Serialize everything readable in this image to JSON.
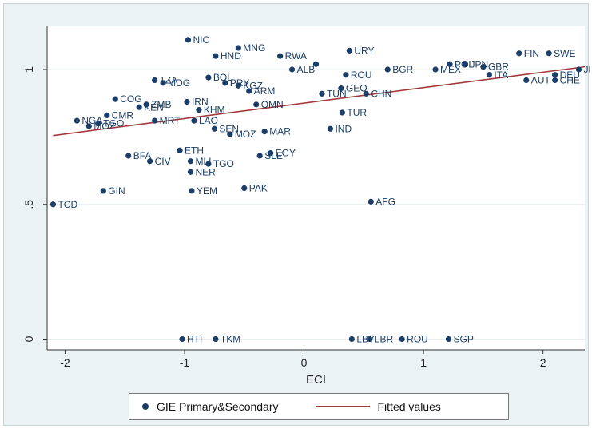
{
  "chart_data": {
    "type": "scatter",
    "xlabel": "ECI",
    "ylabel": "",
    "xlim": [
      -2.15,
      2.35
    ],
    "ylim": [
      -0.04,
      1.16
    ],
    "xticks": [
      {
        "v": -2,
        "label": "-2"
      },
      {
        "v": -1,
        "label": "-1"
      },
      {
        "v": 0,
        "label": "0"
      },
      {
        "v": 1,
        "label": "1"
      },
      {
        "v": 2,
        "label": "2"
      }
    ],
    "yticks": [
      {
        "v": 0,
        "label": "0"
      },
      {
        "v": 0.5,
        "label": ".5"
      },
      {
        "v": 1,
        "label": "1"
      }
    ],
    "grid": true,
    "legend_position": "bottom",
    "colors": {
      "points": "#1a3e68",
      "fit": "#a33a3a",
      "plot_bg": "#ffffff",
      "outer_bg": "#eaf2f3"
    },
    "series": [
      {
        "name": "GIE Primary&Secondary",
        "points": [
          {
            "x": -2.1,
            "y": 0.5,
            "label": "TCD"
          },
          {
            "x": -1.9,
            "y": 0.81,
            "label": "NGA"
          },
          {
            "x": -1.8,
            "y": 0.79,
            "label": "MOZ"
          },
          {
            "x": -1.72,
            "y": 0.8,
            "label": "TGO"
          },
          {
            "x": -1.65,
            "y": 0.83,
            "label": "CMR"
          },
          {
            "x": -1.58,
            "y": 0.89,
            "label": "COG"
          },
          {
            "x": -1.68,
            "y": 0.55,
            "label": "GIN"
          },
          {
            "x": -1.47,
            "y": 0.68,
            "label": "BFA"
          },
          {
            "x": -1.29,
            "y": 0.66,
            "label": "CIV"
          },
          {
            "x": -1.38,
            "y": 0.86,
            "label": "KEN"
          },
          {
            "x": -1.32,
            "y": 0.87,
            "label": "ZMB"
          },
          {
            "x": -1.25,
            "y": 0.81,
            "label": "MRT"
          },
          {
            "x": -1.25,
            "y": 0.96,
            "label": "TZA"
          },
          {
            "x": -1.18,
            "y": 0.95,
            "label": "MDG"
          },
          {
            "x": -0.97,
            "y": 1.11,
            "label": "NIC"
          },
          {
            "x": -0.92,
            "y": 0.81,
            "label": "LAO"
          },
          {
            "x": -1.04,
            "y": 0.7,
            "label": "ETH"
          },
          {
            "x": -0.95,
            "y": 0.66,
            "label": "MLI"
          },
          {
            "x": -0.8,
            "y": 0.65,
            "label": "TGO"
          },
          {
            "x": -0.95,
            "y": 0.62,
            "label": "NER"
          },
          {
            "x": -0.94,
            "y": 0.55,
            "label": "YEM"
          },
          {
            "x": -0.98,
            "y": 0.88,
            "label": "IRN"
          },
          {
            "x": -0.88,
            "y": 0.85,
            "label": "KHM"
          },
          {
            "x": -0.75,
            "y": 0.78,
            "label": "SEN"
          },
          {
            "x": -0.62,
            "y": 0.76,
            "label": "MOZ"
          },
          {
            "x": -0.5,
            "y": 0.56,
            "label": "PAK"
          },
          {
            "x": -0.55,
            "y": 1.08,
            "label": "MNG"
          },
          {
            "x": -0.74,
            "y": 1.05,
            "label": "HND"
          },
          {
            "x": -0.8,
            "y": 0.97,
            "label": "BOL"
          },
          {
            "x": -0.66,
            "y": 0.95,
            "label": "PRY"
          },
          {
            "x": -0.55,
            "y": 0.94,
            "label": "KGZ"
          },
          {
            "x": -0.46,
            "y": 0.92,
            "label": "ARM"
          },
          {
            "x": -0.4,
            "y": 0.87,
            "label": "OMN"
          },
          {
            "x": -0.33,
            "y": 0.77,
            "label": "MAR"
          },
          {
            "x": -0.37,
            "y": 0.68,
            "label": "SLE"
          },
          {
            "x": -0.28,
            "y": 0.69,
            "label": "EGY"
          },
          {
            "x": -0.2,
            "y": 1.05,
            "label": "RWA"
          },
          {
            "x": -0.1,
            "y": 1.0,
            "label": "ALB"
          },
          {
            "x": 0.1,
            "y": 1.02,
            "label": ""
          },
          {
            "x": 0.38,
            "y": 1.07,
            "label": "URY"
          },
          {
            "x": 0.35,
            "y": 0.98,
            "label": "ROU"
          },
          {
            "x": 0.31,
            "y": 0.93,
            "label": "GEO"
          },
          {
            "x": 0.15,
            "y": 0.91,
            "label": "TUN"
          },
          {
            "x": 0.52,
            "y": 0.91,
            "label": "CHN"
          },
          {
            "x": 0.32,
            "y": 0.84,
            "label": "TUR"
          },
          {
            "x": 0.22,
            "y": 0.78,
            "label": "IND"
          },
          {
            "x": 0.56,
            "y": 0.51,
            "label": "AFG"
          },
          {
            "x": 0.7,
            "y": 1.0,
            "label": "BGR"
          },
          {
            "x": 1.1,
            "y": 1.0,
            "label": "MEX"
          },
          {
            "x": 1.22,
            "y": 1.02,
            "label": "POL"
          },
          {
            "x": 1.35,
            "y": 1.02,
            "label": "JPN"
          },
          {
            "x": 1.5,
            "y": 1.01,
            "label": "GBR"
          },
          {
            "x": 1.55,
            "y": 0.98,
            "label": "ITA"
          },
          {
            "x": 1.8,
            "y": 1.06,
            "label": "FIN"
          },
          {
            "x": 2.05,
            "y": 1.06,
            "label": "SWE"
          },
          {
            "x": 2.1,
            "y": 0.98,
            "label": "DEU"
          },
          {
            "x": 1.86,
            "y": 0.96,
            "label": "AUT"
          },
          {
            "x": 2.1,
            "y": 0.96,
            "label": "CHE"
          },
          {
            "x": 2.3,
            "y": 1.0,
            "label": "JPN"
          },
          {
            "x": -1.02,
            "y": 0.0,
            "label": "HTI"
          },
          {
            "x": -0.74,
            "y": 0.0,
            "label": "TKM"
          },
          {
            "x": 0.4,
            "y": 0.0,
            "label": "LBY"
          },
          {
            "x": 0.55,
            "y": 0.0,
            "label": "LBR"
          },
          {
            "x": 0.82,
            "y": 0.0,
            "label": "ROU"
          },
          {
            "x": 1.21,
            "y": 0.0,
            "label": "SGP"
          }
        ]
      },
      {
        "name": "Fitted values",
        "type": "line",
        "x": [
          -2.1,
          2.35
        ],
        "y": [
          0.755,
          1.01
        ]
      }
    ]
  },
  "legend": {
    "items": [
      {
        "label": "GIE Primary&Secondary"
      },
      {
        "label": "Fitted values"
      }
    ]
  }
}
